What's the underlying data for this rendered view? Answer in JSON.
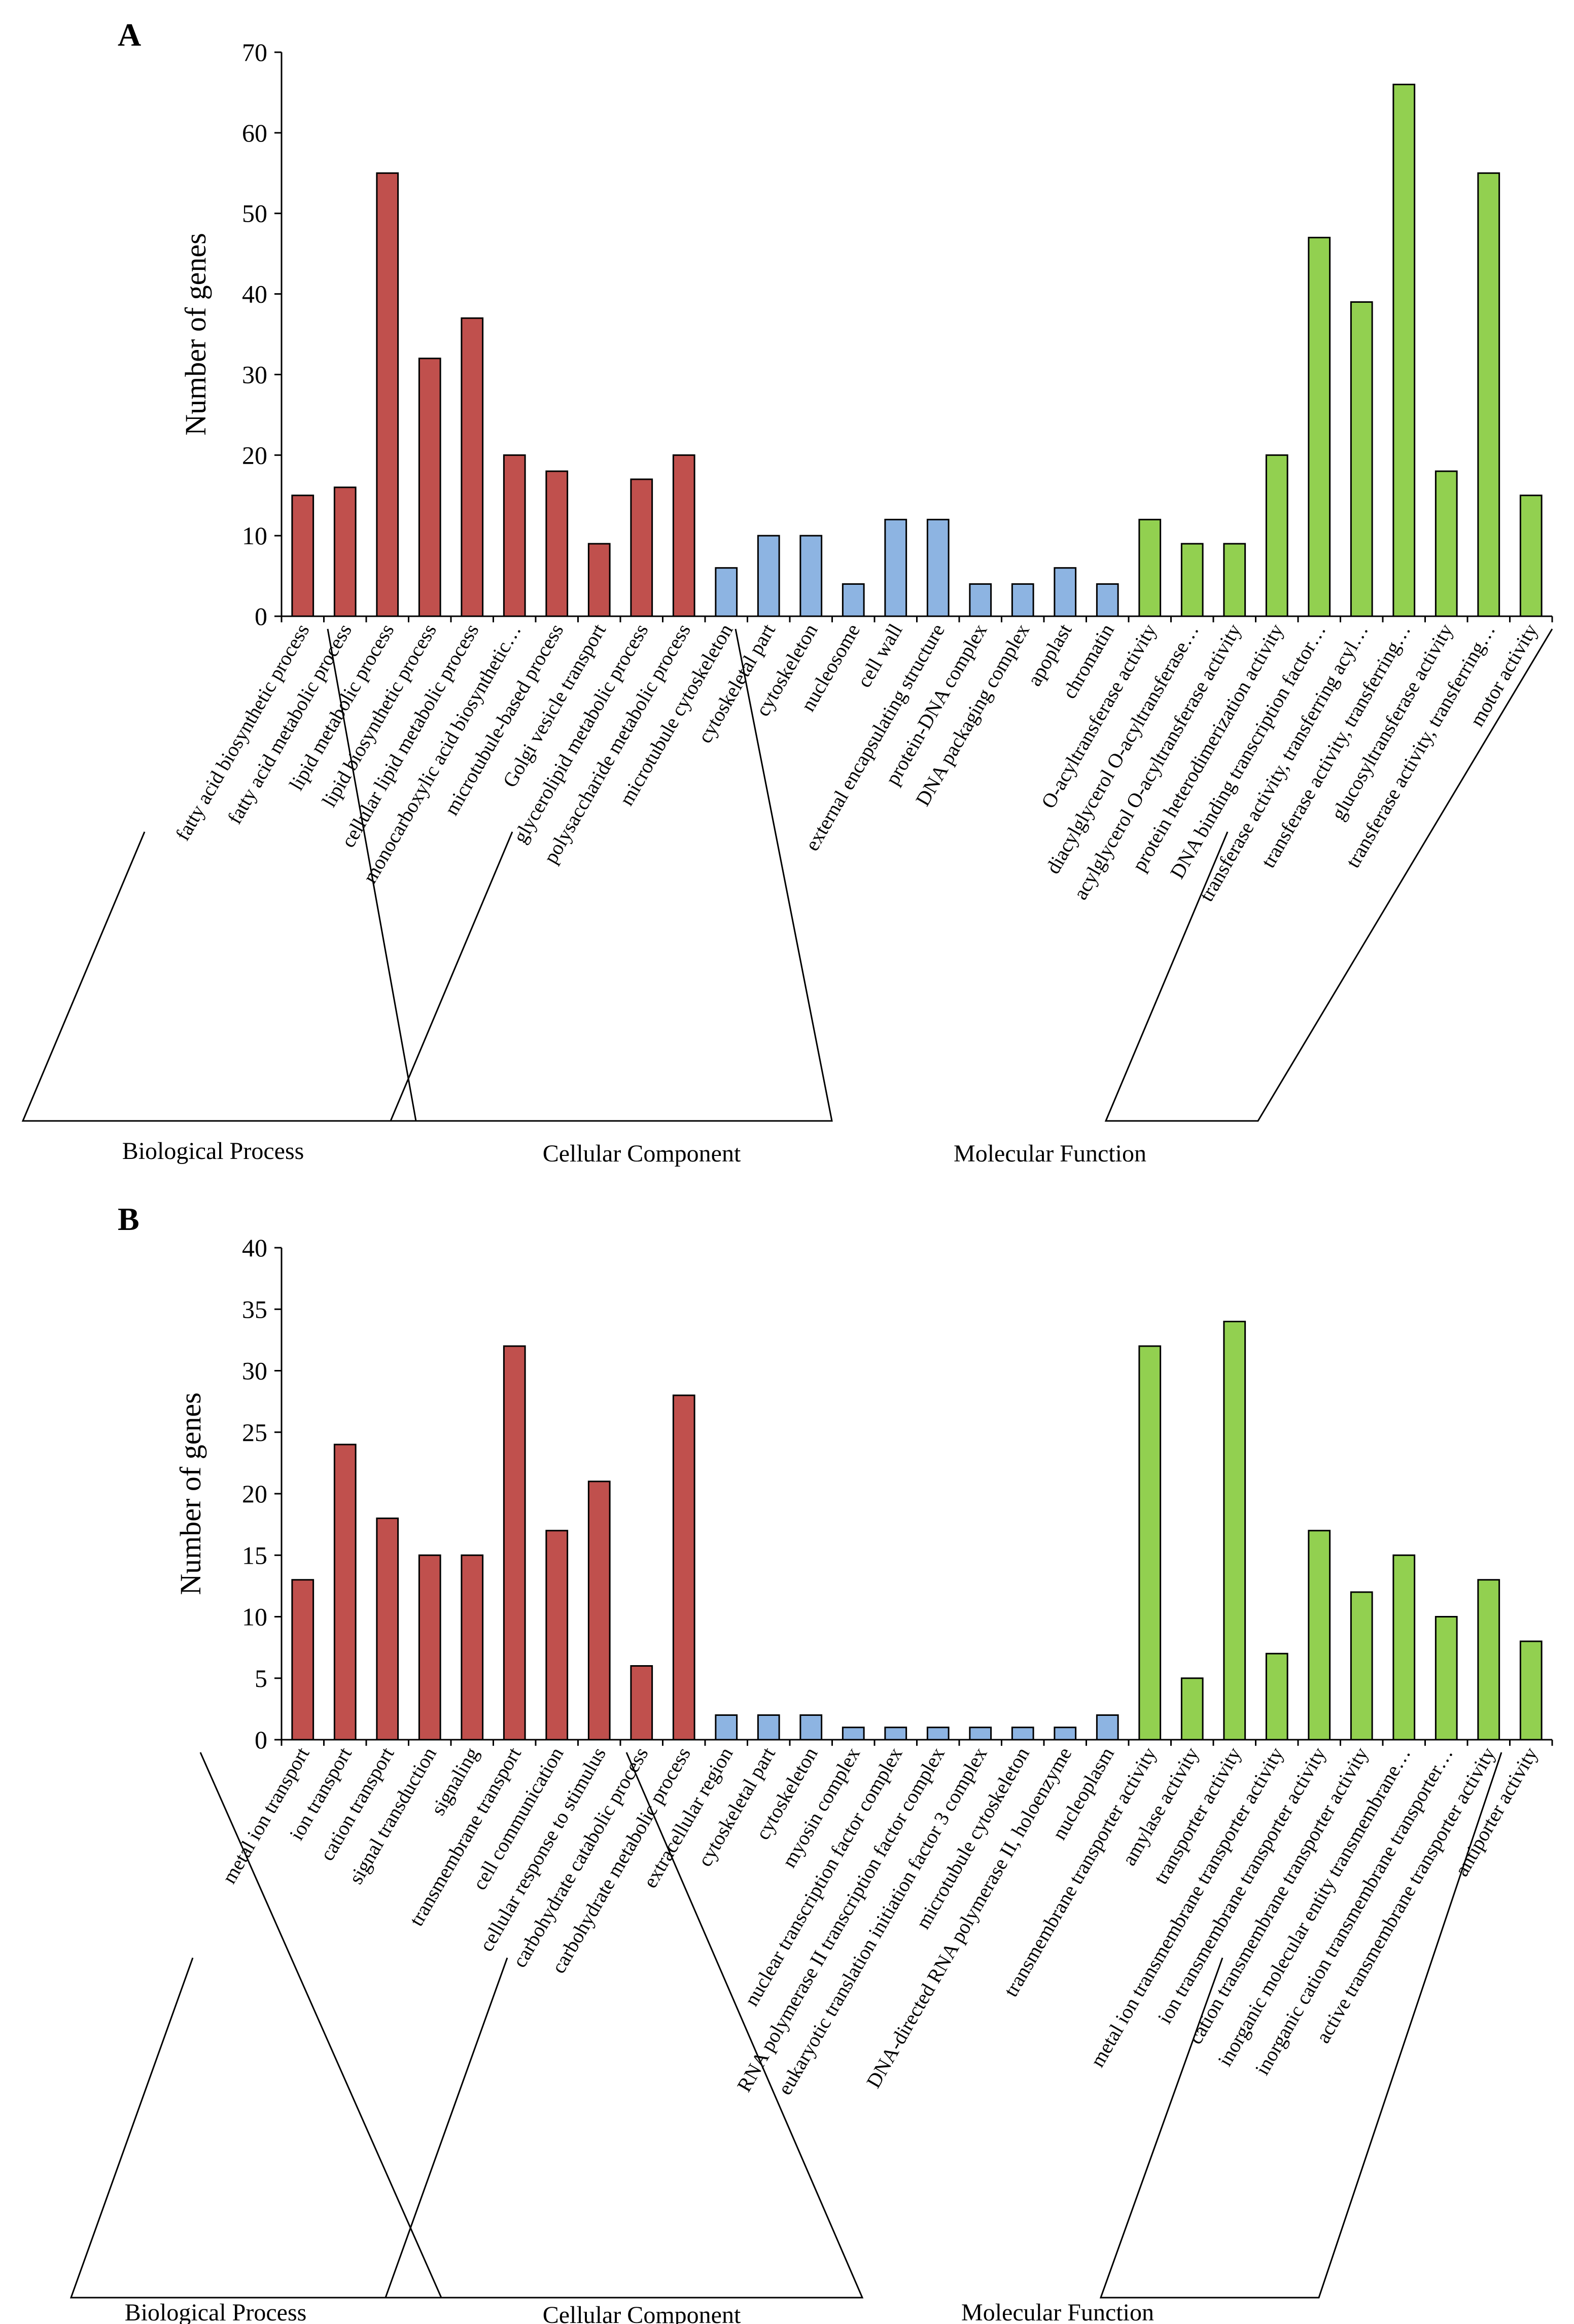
{
  "colors": {
    "Biological Process": "#c0504d",
    "Cellular Component": "#8db4e2",
    "Molecular Function": "#92d050"
  },
  "chart_data": [
    {
      "type": "bar",
      "panel": "A",
      "ylabel": "Number of genes",
      "ylim": [
        0,
        70
      ],
      "yticks": [
        0,
        10,
        20,
        30,
        40,
        50,
        60,
        70
      ],
      "groups": [
        {
          "name": "Biological Process",
          "categories": [
            "fatty acid biosynthetic process",
            "fatty acid metabolic process",
            "lipid metabolic process",
            "lipid biosynthetic process",
            "cellular lipid metabolic process",
            "monocarboxylic acid biosynthetic…",
            "microtubule-based process",
            "Golgi vesicle transport",
            "glycerolipid metabolic process",
            "polysaccharide metabolic process"
          ],
          "values": [
            15,
            16,
            55,
            32,
            37,
            20,
            18,
            9,
            17,
            20
          ]
        },
        {
          "name": "Cellular Component",
          "categories": [
            "microtubule cytoskeleton",
            "cytoskeletal part",
            "cytoskeleton",
            "nucleosome",
            "cell wall",
            "external encapsulating structure",
            "protein-DNA complex",
            "DNA packaging complex",
            "apoplast",
            "chromatin"
          ],
          "values": [
            6,
            10,
            10,
            4,
            12,
            12,
            4,
            4,
            6,
            4
          ]
        },
        {
          "name": "Molecular Function",
          "categories": [
            "O-acyltransferase activity",
            "diacylglycerol O-acyltransferase…",
            "acylglycerol O-acyltransferase activity",
            "protein heterodimerization activity",
            "DNA binding transcription factor…",
            "transferase activity, transferring acyl…",
            "transferase activity, transferring…",
            "glucosyltransferase activity",
            "transferase activity, transferring…",
            "motor activity"
          ],
          "values": [
            12,
            9,
            9,
            20,
            47,
            39,
            66,
            18,
            55,
            15
          ]
        }
      ]
    },
    {
      "type": "bar",
      "panel": "B",
      "ylabel": "Number of genes",
      "ylim": [
        0,
        40
      ],
      "yticks": [
        0,
        5,
        10,
        15,
        20,
        25,
        30,
        35,
        40
      ],
      "groups": [
        {
          "name": "Biological Process",
          "categories": [
            "metal ion transport",
            "ion transport",
            "cation transport",
            "signal transduction",
            "signaling",
            "transmembrane transport",
            "cell communication",
            "cellular response to stimulus",
            "carbohydrate catabolic process",
            "carbohydrate metabolic process"
          ],
          "values": [
            13,
            24,
            18,
            15,
            15,
            32,
            17,
            21,
            6,
            28
          ]
        },
        {
          "name": "Cellular Component",
          "categories": [
            "extracellular region",
            "cytoskeletal part",
            "cytoskeleton",
            "myosin complex",
            "nuclear transcription factor complex",
            "RNA polymerase II transcription factor complex",
            "eukaryotic translation initiation factor 3 complex",
            "microtubule cytoskeleton",
            "DNA-directed RNA polymerase II, holoenzyme",
            "nucleoplasm"
          ],
          "values": [
            2,
            2,
            2,
            1,
            1,
            1,
            1,
            1,
            1,
            2
          ]
        },
        {
          "name": "Molecular Function",
          "categories": [
            "transmembrane transporter activity",
            "amylase activity",
            "transporter activity",
            "metal ion transmembrane transporter activity",
            "ion transmembrane transporter activity",
            "cation transmembrane transporter activity",
            "inorganic molecular entity transmembrane…",
            "inorganic cation transmembrane transporter…",
            "active transmembrane transporter activity",
            "antiporter activity"
          ],
          "values": [
            32,
            5,
            34,
            7,
            17,
            12,
            15,
            10,
            13,
            8
          ]
        }
      ]
    }
  ]
}
